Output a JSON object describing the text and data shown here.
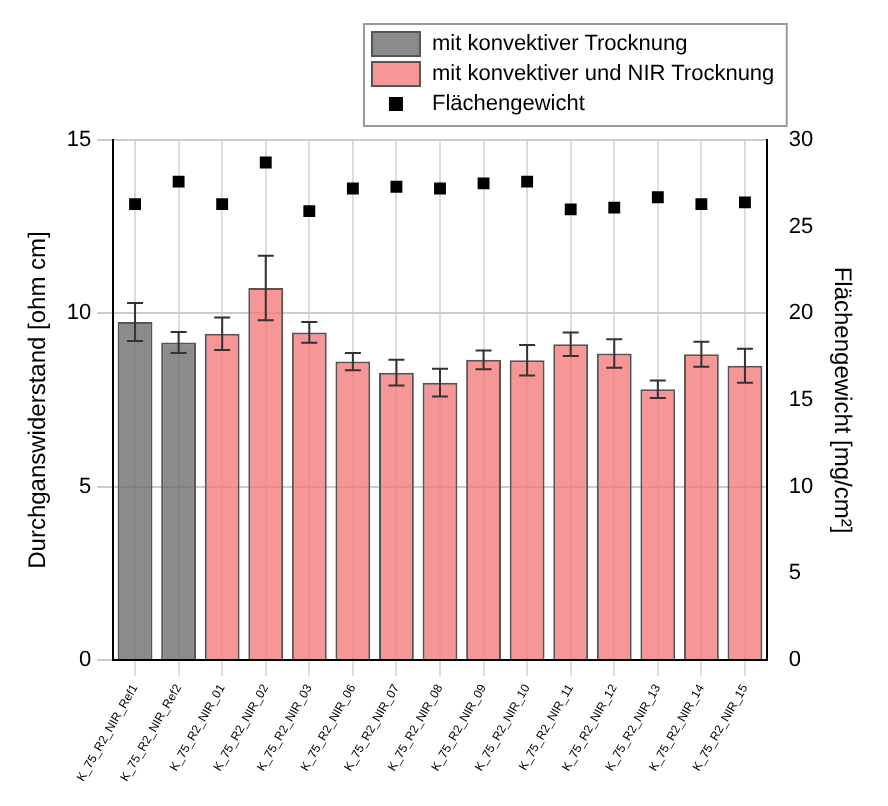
{
  "chart_data": {
    "type": "bar",
    "xlabel": null,
    "ylabel": "Durchganswiderstand [ohm cm]",
    "y2label": "Flächengewicht [mg/cm²]",
    "categories": [
      "K_75_R2_NIR_Ref1",
      "K_75_R2_NIR_Ref2",
      "K_75_R2_NIR_01",
      "K_75_R2_NIR_02",
      "K_75_R2_NIR_03",
      "K_75_R2_NIR_06",
      "K_75_R2_NIR_07",
      "K_75_R2_NIR_08",
      "K_75_R2_NIR_09",
      "K_75_R2_NIR_10",
      "K_75_R2_NIR_11",
      "K_75_R2_NIR_12",
      "K_75_R2_NIR_13",
      "K_75_R2_NIR_14",
      "K_75_R2_NIR_15"
    ],
    "series": [
      {
        "name": "mit konvektiver Trocknung",
        "color": "#6e6e6e",
        "values": [
          9.75,
          9.16,
          null,
          null,
          null,
          null,
          null,
          null,
          null,
          null,
          null,
          null,
          null,
          null,
          null
        ],
        "errors": [
          0.55,
          0.3,
          null,
          null,
          null,
          null,
          null,
          null,
          null,
          null,
          null,
          null,
          null,
          null,
          null
        ]
      },
      {
        "name": "mit konvektiver und NIR Trocknung",
        "color": "#f47c7c",
        "values": [
          null,
          null,
          9.41,
          10.73,
          9.45,
          8.61,
          8.29,
          8.0,
          8.66,
          8.65,
          9.11,
          8.84,
          7.81,
          8.82,
          8.49
        ],
        "errors": [
          null,
          null,
          0.47,
          0.93,
          0.3,
          0.25,
          0.37,
          0.4,
          0.27,
          0.44,
          0.34,
          0.41,
          0.25,
          0.36,
          0.49
        ]
      },
      {
        "name": "Flächengewicht",
        "type": "scatter",
        "axis": "y2",
        "marker": "square",
        "color": "#000000",
        "values": [
          26.3,
          27.6,
          26.3,
          28.7,
          25.9,
          27.2,
          27.3,
          27.2,
          27.5,
          27.6,
          26.0,
          26.1,
          26.7,
          26.3,
          26.4
        ]
      }
    ],
    "ylim": [
      0,
      15
    ],
    "yticks": [
      0,
      5,
      10,
      15
    ],
    "y2lim": [
      0,
      30
    ],
    "y2ticks": [
      0,
      5,
      10,
      15,
      20,
      25,
      30
    ],
    "grid": true,
    "legend": "top right"
  }
}
